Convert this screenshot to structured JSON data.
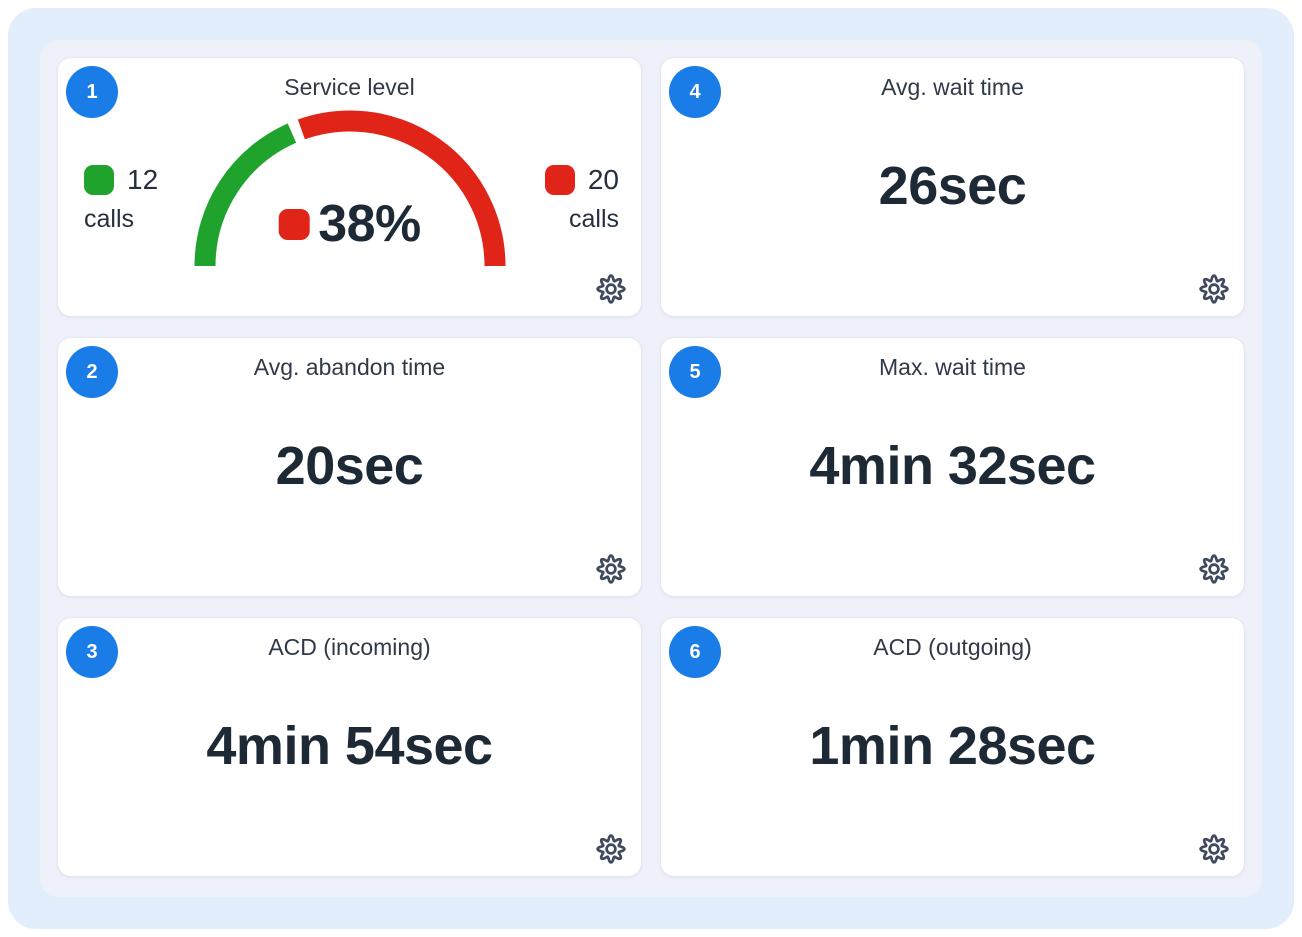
{
  "theme": {
    "page_bg": "#ffffff",
    "outer_bg": "#e2eefc",
    "panel_bg": "#eef1fa",
    "card_bg": "#ffffff",
    "card_border": "#e3e8f1",
    "badge_bg": "#1a7ce6",
    "badge_text": "#ffffff",
    "title_color": "#2f3a49",
    "value_color": "#1e2936",
    "green": "#1fa32d",
    "red": "#e02417",
    "gear_color": "#3e4a5b"
  },
  "icons": {
    "settings": {
      "name": "gear-icon",
      "shape": "8-lobe cog outline with center hole"
    }
  },
  "cards": [
    {
      "number": "1",
      "title": "Service level",
      "type": "gauge"
    },
    {
      "number": "2",
      "title": "Avg. abandon time",
      "value": "20sec"
    },
    {
      "number": "3",
      "title": "ACD (incoming)",
      "value": "4min 54sec"
    },
    {
      "number": "4",
      "title": "Avg. wait time",
      "value": "26sec"
    },
    {
      "number": "5",
      "title": "Max. wait time",
      "value": "4min 32sec"
    },
    {
      "number": "6",
      "title": "ACD (outgoing)",
      "value": "1min 28sec"
    }
  ],
  "chart_data": {
    "type": "gauge",
    "title": "Service level",
    "percent": 38,
    "center_label": "38%",
    "axis_range": [
      0,
      100
    ],
    "segments": [
      {
        "name": "green-segment",
        "calls": 12,
        "color": "#1fa32d"
      },
      {
        "name": "red-segment",
        "calls": 20,
        "color": "#e02417"
      }
    ],
    "legend_left": {
      "value": "12",
      "label": "calls",
      "color": "#1fa32d"
    },
    "legend_right": {
      "value": "20",
      "label": "calls",
      "color": "#e02417"
    }
  }
}
